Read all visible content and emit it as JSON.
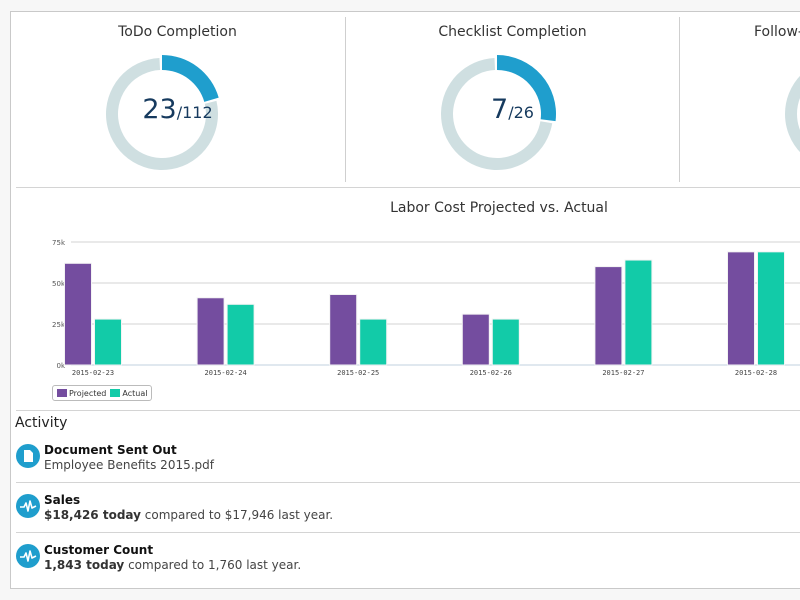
{
  "kpis": [
    {
      "title": "ToDo Completion",
      "completed": 23,
      "total": 112,
      "separator": "/"
    },
    {
      "title": "Checklist Completion",
      "completed": 7,
      "total": 26,
      "separator": "/"
    },
    {
      "title": "Follow-",
      "completed": null,
      "total": null,
      "separator": ""
    }
  ],
  "colors": {
    "donut_track": "#cfdfe1",
    "donut_fill": "#1f9ecd",
    "projected": "#744d9f",
    "actual": "#12cba8",
    "value_text": "#163a5e",
    "activity_icon": "#1f9ecd"
  },
  "chart_data": {
    "type": "bar",
    "title": "Labor Cost Projected vs. Actual",
    "xlabel": "",
    "ylabel": "",
    "categories": [
      "2015-02-23",
      "2015-02-24",
      "2015-02-25",
      "2015-02-26",
      "2015-02-27",
      "2015-02-28"
    ],
    "series": [
      {
        "name": "Projected",
        "values": [
          62000,
          41000,
          43000,
          31000,
          60000,
          69000
        ]
      },
      {
        "name": "Actual",
        "values": [
          28000,
          37000,
          28000,
          28000,
          64000,
          69000
        ]
      }
    ],
    "ylim": [
      0,
      75000
    ],
    "yticks": [
      0,
      25000,
      50000,
      75000
    ],
    "ytick_labels": [
      "0k",
      "25k",
      "50k",
      "75k"
    ],
    "grid": true,
    "legend": "bottom-left"
  },
  "activity": {
    "title": "Activity",
    "items": [
      {
        "icon": "document-icon",
        "heading": "Document Sent Out",
        "bold": "",
        "text": "Employee Benefits 2015.pdf"
      },
      {
        "icon": "pulse-icon",
        "heading": "Sales",
        "bold": "$18,426 today",
        "text": " compared to $17,946 last year."
      },
      {
        "icon": "pulse-icon",
        "heading": "Customer Count",
        "bold": "1,843 today",
        "text": " compared to 1,760 last year."
      }
    ]
  }
}
